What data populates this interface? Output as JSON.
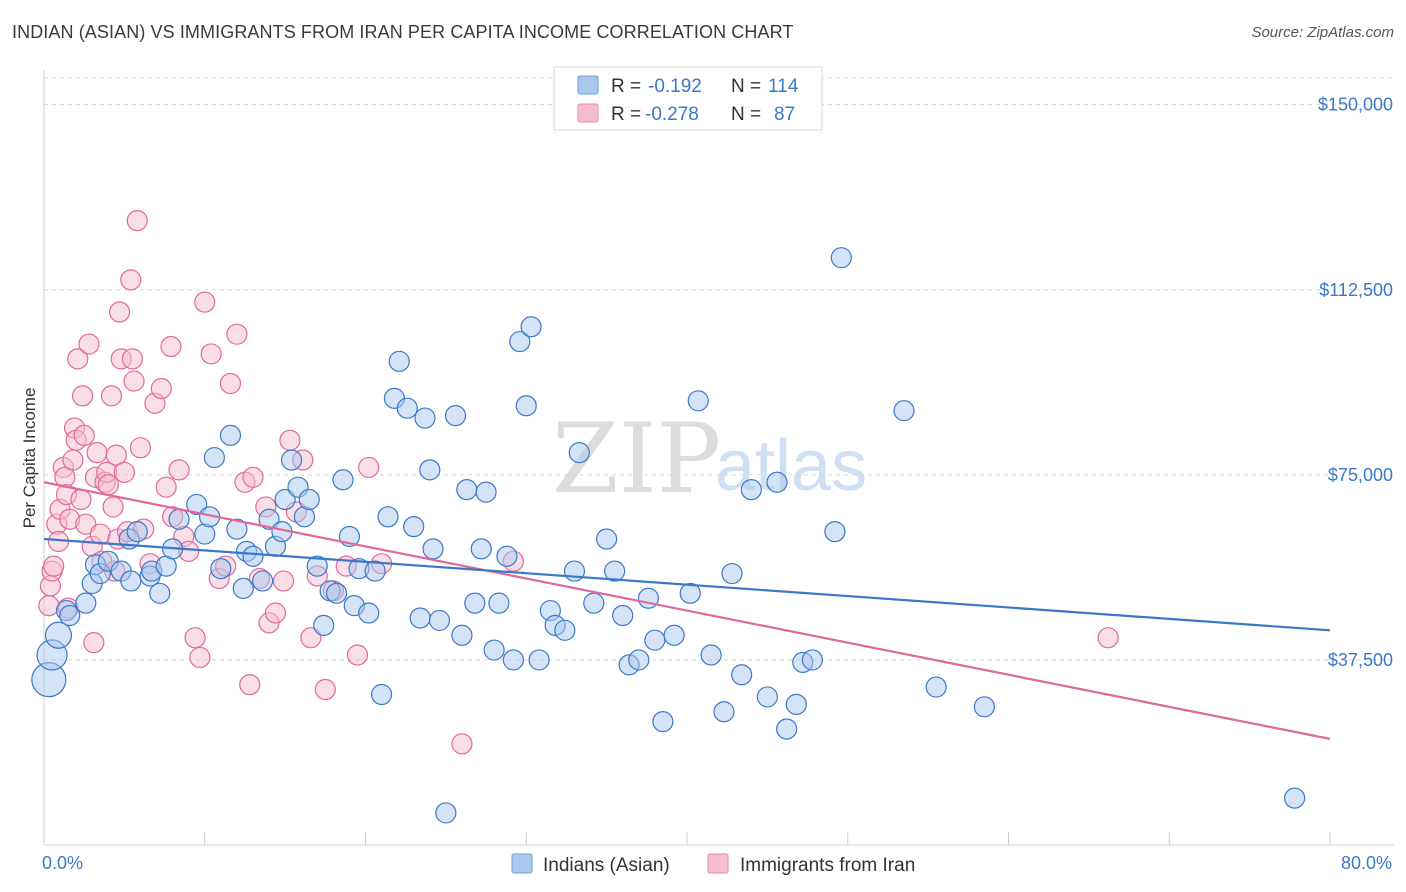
{
  "title": "INDIAN (ASIAN) VS IMMIGRANTS FROM IRAN PER CAPITA INCOME CORRELATION CHART",
  "source": "Source: ZipAtlas.com",
  "watermark": {
    "zip": "ZIP",
    "atlas": "atlas"
  },
  "colors": {
    "blue": "#3b78c9",
    "blue_fill": "#a9c8ee",
    "pink": "#e0699a",
    "pink_fill": "#f6bdd0",
    "grid": "#d8d8d8"
  },
  "legend": {
    "rows": [
      {
        "r_label": "R =",
        "r_value": "-0.192",
        "n_label": "N =",
        "n_value": "114"
      },
      {
        "r_label": "R =",
        "r_value": "-0.278",
        "n_label": "N =",
        "n_value": "87"
      }
    ]
  },
  "chart_data": {
    "type": "scatter",
    "title": "INDIAN (ASIAN) VS IMMIGRANTS FROM IRAN PER CAPITA INCOME CORRELATION CHART",
    "xlabel": "",
    "ylabel": "Per Capita Income",
    "xlim": [
      0,
      80
    ],
    "ylim": [
      0,
      155000
    ],
    "x_tick_labels": [
      "0.0%",
      "80.0%"
    ],
    "y_ticks": [
      37500,
      75000,
      112500,
      150000
    ],
    "y_tick_labels": [
      "$37,500",
      "$75,000",
      "$112,500",
      "$150,000"
    ],
    "series": [
      {
        "name": "Indians (Asian)",
        "color": "#3b78c9",
        "trend": {
          "x": [
            0,
            80
          ],
          "y": [
            62000,
            43500
          ]
        },
        "points": [
          [
            0.3,
            33500
          ],
          [
            0.5,
            38500
          ],
          [
            0.9,
            42500
          ],
          [
            1.4,
            47500
          ],
          [
            1.6,
            46500
          ],
          [
            2.6,
            49000
          ],
          [
            3.0,
            53000
          ],
          [
            3.2,
            56800
          ],
          [
            3.5,
            55000
          ],
          [
            4.0,
            57500
          ],
          [
            4.8,
            55500
          ],
          [
            5.3,
            62000
          ],
          [
            5.4,
            53500
          ],
          [
            5.8,
            63500
          ],
          [
            6.6,
            54500
          ],
          [
            6.7,
            55500
          ],
          [
            7.2,
            51000
          ],
          [
            7.6,
            56500
          ],
          [
            8.0,
            60000
          ],
          [
            8.4,
            66000
          ],
          [
            9.5,
            69000
          ],
          [
            10.0,
            63000
          ],
          [
            10.3,
            66500
          ],
          [
            10.6,
            78500
          ],
          [
            11.0,
            56000
          ],
          [
            11.6,
            83000
          ],
          [
            12.0,
            64000
          ],
          [
            12.4,
            52000
          ],
          [
            12.6,
            59500
          ],
          [
            13.0,
            58500
          ],
          [
            13.6,
            53500
          ],
          [
            14.0,
            66000
          ],
          [
            14.4,
            60500
          ],
          [
            14.8,
            63500
          ],
          [
            15.0,
            70000
          ],
          [
            15.4,
            78000
          ],
          [
            15.8,
            72500
          ],
          [
            16.2,
            66500
          ],
          [
            16.5,
            70000
          ],
          [
            17.0,
            56500
          ],
          [
            17.4,
            44500
          ],
          [
            17.8,
            51500
          ],
          [
            18.2,
            51000
          ],
          [
            18.6,
            74000
          ],
          [
            19.0,
            62500
          ],
          [
            19.3,
            48500
          ],
          [
            19.6,
            56000
          ],
          [
            20.2,
            47000
          ],
          [
            20.6,
            55500
          ],
          [
            21.0,
            30500
          ],
          [
            21.4,
            66500
          ],
          [
            21.8,
            90500
          ],
          [
            22.1,
            98000
          ],
          [
            22.6,
            88500
          ],
          [
            23.0,
            64500
          ],
          [
            23.4,
            46000
          ],
          [
            23.7,
            86500
          ],
          [
            24.0,
            76000
          ],
          [
            24.2,
            60000
          ],
          [
            24.6,
            45500
          ],
          [
            25.0,
            6500
          ],
          [
            25.6,
            87000
          ],
          [
            26.0,
            42500
          ],
          [
            26.3,
            72000
          ],
          [
            26.8,
            49000
          ],
          [
            27.2,
            60000
          ],
          [
            27.5,
            71500
          ],
          [
            28.0,
            39500
          ],
          [
            28.3,
            49000
          ],
          [
            28.8,
            58500
          ],
          [
            29.2,
            37500
          ],
          [
            29.6,
            102000
          ],
          [
            30.0,
            89000
          ],
          [
            30.3,
            105000
          ],
          [
            30.8,
            37500
          ],
          [
            31.5,
            47500
          ],
          [
            31.8,
            44500
          ],
          [
            32.4,
            43500
          ],
          [
            33.0,
            55500
          ],
          [
            33.3,
            79500
          ],
          [
            34.2,
            49000
          ],
          [
            35.0,
            62000
          ],
          [
            35.5,
            55500
          ],
          [
            36.0,
            46500
          ],
          [
            36.4,
            36500
          ],
          [
            37.0,
            37500
          ],
          [
            37.6,
            50000
          ],
          [
            38.0,
            41500
          ],
          [
            38.5,
            25000
          ],
          [
            39.2,
            42500
          ],
          [
            40.2,
            51000
          ],
          [
            40.7,
            90000
          ],
          [
            41.5,
            38500
          ],
          [
            42.3,
            27000
          ],
          [
            42.8,
            55000
          ],
          [
            43.4,
            34500
          ],
          [
            44.0,
            72000
          ],
          [
            45.0,
            30000
          ],
          [
            45.6,
            73500
          ],
          [
            46.2,
            23500
          ],
          [
            46.8,
            28500
          ],
          [
            47.2,
            37000
          ],
          [
            47.8,
            37500
          ],
          [
            49.2,
            63500
          ],
          [
            49.6,
            119000
          ],
          [
            53.5,
            88000
          ],
          [
            55.5,
            32000
          ],
          [
            58.5,
            28000
          ],
          [
            77.8,
            9500
          ]
        ]
      },
      {
        "name": "Immigrants from Iran",
        "color": "#e0699a",
        "trend": {
          "x": [
            0,
            80
          ],
          "y": [
            73500,
            21500
          ]
        },
        "points": [
          [
            0.3,
            48500
          ],
          [
            0.4,
            52500
          ],
          [
            0.5,
            55500
          ],
          [
            0.6,
            56500
          ],
          [
            0.8,
            65000
          ],
          [
            0.9,
            61500
          ],
          [
            1.0,
            68000
          ],
          [
            1.2,
            76500
          ],
          [
            1.3,
            74500
          ],
          [
            1.4,
            71000
          ],
          [
            1.5,
            48000
          ],
          [
            1.6,
            66000
          ],
          [
            1.8,
            78000
          ],
          [
            1.9,
            84500
          ],
          [
            2.0,
            82000
          ],
          [
            2.1,
            98500
          ],
          [
            2.3,
            70000
          ],
          [
            2.4,
            91000
          ],
          [
            2.5,
            83000
          ],
          [
            2.6,
            65000
          ],
          [
            2.8,
            101500
          ],
          [
            3.0,
            60500
          ],
          [
            3.1,
            41000
          ],
          [
            3.2,
            74500
          ],
          [
            3.3,
            79500
          ],
          [
            3.5,
            63000
          ],
          [
            3.6,
            57500
          ],
          [
            3.8,
            73500
          ],
          [
            3.9,
            75500
          ],
          [
            4.0,
            73000
          ],
          [
            4.2,
            91000
          ],
          [
            4.3,
            68500
          ],
          [
            4.4,
            55500
          ],
          [
            4.5,
            79000
          ],
          [
            4.6,
            62000
          ],
          [
            4.7,
            108000
          ],
          [
            4.8,
            98500
          ],
          [
            5.0,
            75500
          ],
          [
            5.2,
            63500
          ],
          [
            5.4,
            114500
          ],
          [
            5.5,
            98500
          ],
          [
            5.6,
            94000
          ],
          [
            5.8,
            126500
          ],
          [
            6.0,
            80500
          ],
          [
            6.2,
            64000
          ],
          [
            6.6,
            57000
          ],
          [
            6.9,
            89500
          ],
          [
            7.3,
            92500
          ],
          [
            7.6,
            72500
          ],
          [
            7.9,
            101000
          ],
          [
            8.0,
            66500
          ],
          [
            8.4,
            76000
          ],
          [
            8.7,
            62500
          ],
          [
            9.0,
            59500
          ],
          [
            9.4,
            42000
          ],
          [
            9.7,
            38000
          ],
          [
            10.0,
            110000
          ],
          [
            10.4,
            99500
          ],
          [
            10.9,
            54000
          ],
          [
            11.3,
            56500
          ],
          [
            11.6,
            93500
          ],
          [
            12.0,
            103500
          ],
          [
            12.5,
            73500
          ],
          [
            12.8,
            32500
          ],
          [
            13.0,
            74500
          ],
          [
            13.4,
            54000
          ],
          [
            13.8,
            68500
          ],
          [
            14.0,
            45000
          ],
          [
            14.4,
            47000
          ],
          [
            14.9,
            53500
          ],
          [
            15.3,
            82000
          ],
          [
            15.7,
            67500
          ],
          [
            16.1,
            78000
          ],
          [
            16.6,
            42000
          ],
          [
            17.0,
            54500
          ],
          [
            17.5,
            31500
          ],
          [
            18.0,
            51500
          ],
          [
            18.8,
            56500
          ],
          [
            19.5,
            38500
          ],
          [
            20.2,
            76500
          ],
          [
            21.0,
            57000
          ],
          [
            26.0,
            20500
          ],
          [
            29.2,
            57500
          ],
          [
            66.2,
            42000
          ]
        ]
      }
    ]
  }
}
